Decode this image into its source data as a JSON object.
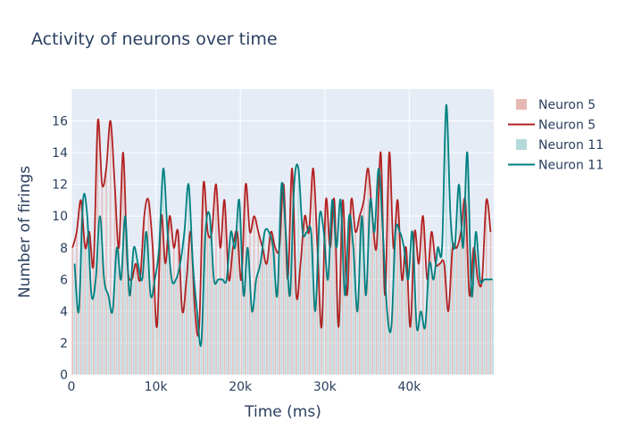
{
  "chart_data": {
    "type": "bar",
    "title": "Activity of neurons over time",
    "xlabel": "Time (ms)",
    "ylabel": "Number of firings",
    "xlim": [
      0,
      50000
    ],
    "ylim": [
      0,
      18
    ],
    "x_ticks": [
      0,
      10000,
      20000,
      30000,
      40000
    ],
    "x_tick_labels": [
      "0",
      "10k",
      "20k",
      "30k",
      "40k"
    ],
    "y_ticks": [
      0,
      2,
      4,
      6,
      8,
      10,
      12,
      14,
      16
    ],
    "bin_width_ms": 500,
    "grid": true,
    "legend_position": "right",
    "legend": [
      {
        "label": "Neuron 5",
        "kind": "bar",
        "color": "#e6b8b4"
      },
      {
        "label": "Neuron 5",
        "kind": "line",
        "color": "#b22222"
      },
      {
        "label": "Neuron 11",
        "kind": "bar",
        "color": "#b4dadb"
      },
      {
        "label": "Neuron 11",
        "kind": "line",
        "color": "#008080"
      }
    ],
    "series": [
      {
        "name": "Neuron 5",
        "bar_color": "#e6b8b4",
        "line_color": "#b22222",
        "x": [
          0,
          500,
          1000,
          1500,
          2000,
          2500,
          3000,
          3500,
          4000,
          4500,
          5000,
          5500,
          6000,
          6500,
          7000,
          7500,
          8000,
          8500,
          9000,
          9500,
          10000,
          10500,
          11000,
          11500,
          12000,
          12500,
          13000,
          13500,
          14000,
          14500,
          15000,
          15500,
          16000,
          16500,
          17000,
          17500,
          18000,
          18500,
          19000,
          19500,
          20000,
          20500,
          21000,
          21500,
          22000,
          22500,
          23000,
          23500,
          24000,
          24500,
          25000,
          25500,
          26000,
          26500,
          27000,
          27500,
          28000,
          28500,
          29000,
          29500,
          30000,
          30500,
          31000,
          31500,
          32000,
          32500,
          33000,
          33500,
          34000,
          34500,
          35000,
          35500,
          36000,
          36500,
          37000,
          37500,
          38000,
          38500,
          39000,
          39500,
          40000,
          40500,
          41000,
          41500,
          42000,
          42500,
          43000,
          43500,
          44000,
          44500,
          45000,
          45500,
          46000,
          46500,
          47000,
          47500,
          48000,
          48500,
          49000,
          49500
        ],
        "values": [
          8,
          9,
          11,
          8,
          9,
          7,
          16,
          12,
          13,
          16,
          12,
          8,
          14,
          7,
          6,
          7,
          6,
          10,
          11,
          8,
          3,
          10,
          7,
          10,
          8,
          9,
          4,
          6,
          9,
          4,
          3,
          12,
          9,
          9,
          12,
          8,
          11,
          6,
          8,
          9,
          6,
          12,
          9,
          10,
          9,
          8,
          7,
          9,
          8,
          8,
          12,
          6,
          13,
          5,
          7,
          10,
          9,
          13,
          8,
          3,
          11,
          8,
          11,
          3,
          11,
          5,
          11,
          9,
          10,
          11,
          13,
          10,
          8,
          14,
          5,
          14,
          8,
          11,
          6,
          8,
          3,
          9,
          7,
          10,
          6,
          9,
          7,
          7,
          7,
          4,
          8,
          8,
          9,
          11,
          5,
          8,
          6,
          6,
          11,
          9
        ]
      },
      {
        "name": "Neuron 11",
        "bar_color": "#b4dadb",
        "line_color": "#008080",
        "x": [
          0,
          500,
          1000,
          1500,
          2000,
          2500,
          3000,
          3500,
          4000,
          4500,
          5000,
          5500,
          6000,
          6500,
          7000,
          7500,
          8000,
          8500,
          9000,
          9500,
          10000,
          10500,
          11000,
          11500,
          12000,
          12500,
          13000,
          13500,
          14000,
          14500,
          15000,
          15500,
          16000,
          16500,
          17000,
          17500,
          18000,
          18500,
          19000,
          19500,
          20000,
          20500,
          21000,
          21500,
          22000,
          22500,
          23000,
          23500,
          24000,
          24500,
          25000,
          25500,
          26000,
          26500,
          27000,
          27500,
          28000,
          28500,
          29000,
          29500,
          30000,
          30500,
          31000,
          31500,
          32000,
          32500,
          33000,
          33500,
          34000,
          34500,
          35000,
          35500,
          36000,
          36500,
          37000,
          37500,
          38000,
          38500,
          39000,
          39500,
          40000,
          40500,
          41000,
          41500,
          42000,
          42500,
          43000,
          43500,
          44000,
          44500,
          45000,
          45500,
          46000,
          46500,
          47000,
          47500,
          48000,
          48500,
          49000,
          49500
        ],
        "values": [
          7,
          4,
          11,
          10,
          5,
          6,
          10,
          6,
          5,
          4,
          8,
          6,
          10,
          5,
          8,
          7,
          6,
          9,
          5,
          6,
          8,
          13,
          9,
          6,
          6,
          7,
          9,
          12,
          7,
          4,
          2,
          9,
          10,
          6,
          6,
          6,
          6,
          9,
          8,
          11,
          5,
          8,
          4,
          6,
          7,
          9,
          9,
          8,
          5,
          12,
          9,
          5,
          12,
          13,
          9,
          9,
          9,
          4,
          10,
          9,
          6,
          11,
          8,
          11,
          5,
          10,
          8,
          4,
          10,
          5,
          11,
          9,
          13,
          9,
          4,
          3,
          9,
          9,
          8,
          6,
          9,
          3,
          4,
          3,
          7,
          6,
          8,
          8,
          17,
          10,
          8,
          12,
          8,
          14,
          5,
          9,
          6,
          6,
          6,
          6
        ]
      }
    ]
  }
}
